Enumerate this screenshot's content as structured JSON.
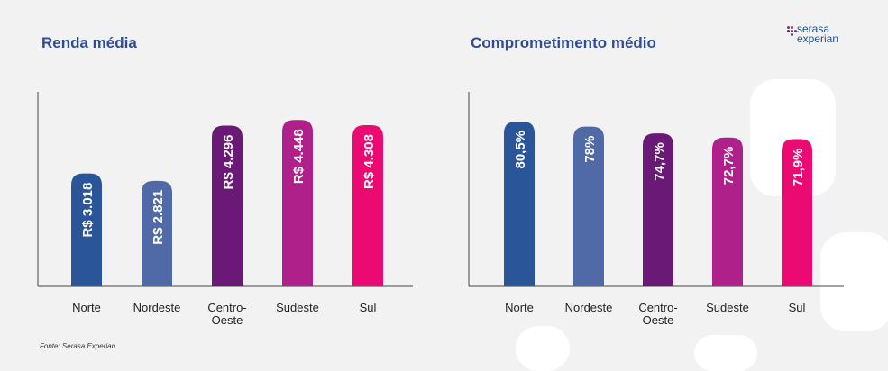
{
  "brand": {
    "line1": "serasa",
    "line2": "experian",
    "colors": [
      "#1d4f91",
      "#af1685",
      "#e80070",
      "#6d2077"
    ]
  },
  "source": "Fonte: Serasa Experian",
  "chart_data": [
    {
      "type": "bar",
      "title": "Renda média",
      "categories": [
        "Norte",
        "Nordeste",
        "Centro-Oeste",
        "Sudeste",
        "Sul"
      ],
      "category_lines": [
        [
          "Norte"
        ],
        [
          "Nordeste"
        ],
        [
          "Centro-",
          "Oeste"
        ],
        [
          "Sudeste"
        ],
        [
          "Sul"
        ]
      ],
      "values": [
        3018,
        2821,
        4296,
        4448,
        4308
      ],
      "data_labels": [
        "R$ 3.018",
        "R$ 2.821",
        "R$ 4.296",
        "R$ 4.448",
        "R$ 4.308"
      ],
      "colors": [
        "#2b5599",
        "#4f6aa6",
        "#6a1a76",
        "#b0208a",
        "#ea0a72"
      ],
      "ylim": [
        0,
        5200
      ],
      "grid": false
    },
    {
      "type": "bar",
      "title": "Comprometimento médio",
      "categories": [
        "Norte",
        "Nordeste",
        "Centro-Oeste",
        "Sudeste",
        "Sul"
      ],
      "category_lines": [
        [
          "Norte"
        ],
        [
          "Nordeste"
        ],
        [
          "Centro-",
          "Oeste"
        ],
        [
          "Sudeste"
        ],
        [
          "Sul"
        ]
      ],
      "values": [
        80.5,
        78,
        74.7,
        72.7,
        71.9
      ],
      "data_labels": [
        "80,5%",
        "78%",
        "74,7%",
        "72,7%",
        "71,9%"
      ],
      "colors": [
        "#2b5599",
        "#4f6aa6",
        "#6a1a76",
        "#b0208a",
        "#ea0a72"
      ],
      "ylim": [
        0,
        95
      ],
      "grid": false
    }
  ]
}
